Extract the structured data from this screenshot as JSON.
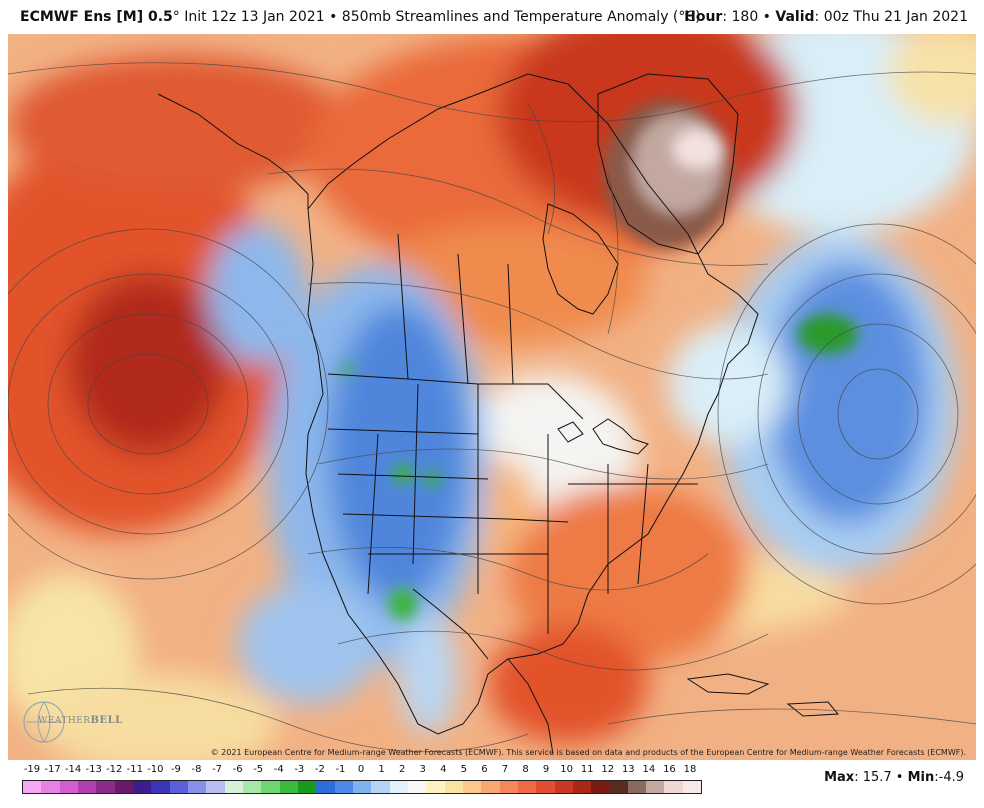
{
  "header": {
    "model": "ECMWF Ens [M] 0.5",
    "degree": "°",
    "init": " Init 12z 13 Jan 2021",
    "sep": " • ",
    "product": "850mb Streamlines and Temperature Anomaly (°C)",
    "hour_label": "Hour",
    "hour_value": ": 180",
    "valid_label": "Valid",
    "valid_value": ": 00z Thu 21 Jan 2021"
  },
  "map": {
    "copyright": "© 2021 European Centre for Medium-range Weather Forecasts (ECMWF). This service is based on data and products of the European Centre for Medium-range Weather Forecasts (ECMWF).",
    "logo_text_1": "WEATHER",
    "logo_text_2": "BELL"
  },
  "colorbar": {
    "labels": [
      "-19",
      "-17",
      "-14",
      "-13",
      "-12",
      "-11",
      "-10",
      "-9",
      "-8",
      "-7",
      "-6",
      "-5",
      "-4",
      "-3",
      "-2",
      "-1",
      "0",
      "1",
      "2",
      "3",
      "4",
      "5",
      "6",
      "7",
      "8",
      "9",
      "10",
      "11",
      "12",
      "13",
      "14",
      "16",
      "18"
    ],
    "colors": [
      "#f7a8f2",
      "#e981e3",
      "#d45dd0",
      "#b23fad",
      "#8e2a87",
      "#6a1a6b",
      "#3c1d8c",
      "#3d35b8",
      "#5b60d8",
      "#8a90e8",
      "#b7bdf0",
      "#d8f0d8",
      "#a6e8a6",
      "#6fd56f",
      "#3bbb3b",
      "#1a9a1a",
      "#2b6fd6",
      "#4a8ae6",
      "#7fb3f0",
      "#b3d4f5",
      "#e2f0fa",
      "#f7f7f7",
      "#fdf3c0",
      "#fde3a0",
      "#fcc98a",
      "#f9a870",
      "#f5885a",
      "#ee6a44",
      "#e24e30",
      "#c93822",
      "#a82818",
      "#7a1a10",
      "#5a2b20",
      "#8a6a60",
      "#c2a8a0",
      "#eed8d4",
      "#f8e8e8"
    ],
    "stats_max_label": "Max",
    "stats_max_value": ": 15.7",
    "stats_sep": " • ",
    "stats_min_label": "Min",
    "stats_min_value": ":-4.9"
  }
}
